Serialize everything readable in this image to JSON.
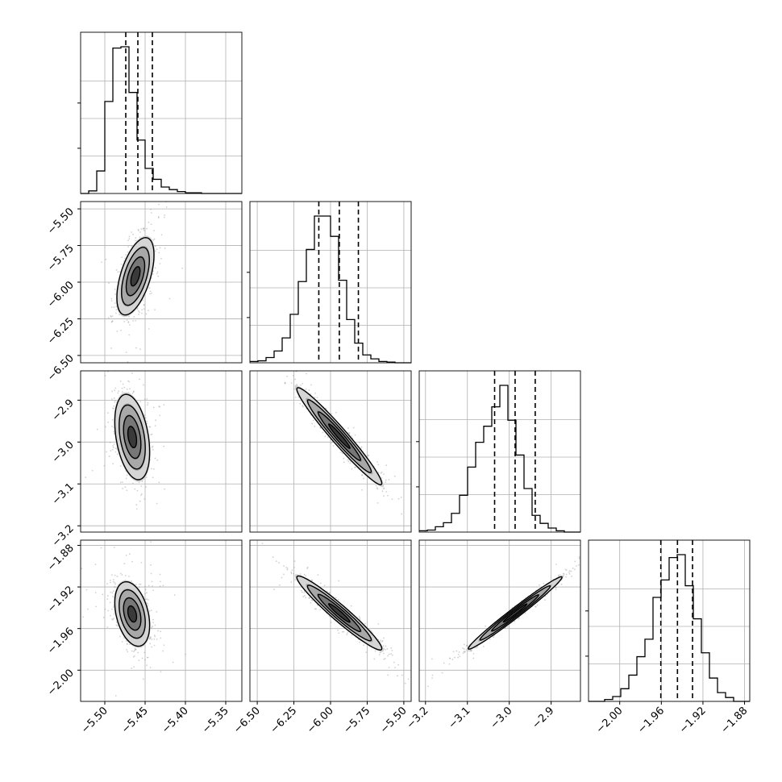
{
  "chart_data": {
    "type": "corner",
    "parameters": [
      {
        "ticks": [
          -5.5,
          -5.45,
          -5.4,
          -5.35
        ],
        "tick_labels": [
          "−5.50",
          "−5.45",
          "−5.40",
          "−5.35"
        ],
        "range": [
          -5.53,
          -5.33
        ],
        "quantiles": [
          -5.474,
          -5.459,
          -5.441
        ]
      },
      {
        "ticks": [
          -6.5,
          -6.25,
          -6.0,
          -5.75,
          -5.5
        ],
        "tick_labels": [
          "−6.50",
          "−6.25",
          "−6.00",
          "−5.75",
          "−5.50"
        ],
        "range": [
          -6.55,
          -5.45
        ],
        "quantiles": [
          -6.08,
          -5.94,
          -5.81
        ]
      },
      {
        "ticks": [
          -3.2,
          -3.1,
          -3.0,
          -2.9
        ],
        "tick_labels": [
          "−3.2",
          "−3.1",
          "−3.0",
          "−2.9"
        ],
        "range": [
          -3.215,
          -2.83
        ],
        "quantiles": [
          -3.035,
          -2.986,
          -2.938
        ]
      },
      {
        "ticks": [
          -2.0,
          -1.96,
          -1.92,
          -1.88
        ],
        "tick_labels": [
          "−2.00",
          "−1.96",
          "−1.92",
          "−1.88"
        ],
        "range": [
          -2.03,
          -1.875
        ],
        "quantiles": [
          -1.9605,
          -1.9445,
          -1.93
        ]
      }
    ],
    "histograms": [
      [
        0,
        4,
        35,
        143,
        226,
        228,
        157,
        83,
        39,
        22,
        10,
        6,
        3,
        1,
        1,
        0,
        0,
        0,
        0,
        0
      ],
      [
        2,
        3,
        8,
        18,
        38,
        74,
        124,
        173,
        224,
        224,
        193,
        126,
        66,
        30,
        12,
        6,
        2,
        1,
        0,
        0
      ],
      [
        2,
        3,
        8,
        14,
        28,
        55,
        97,
        134,
        158,
        187,
        219,
        167,
        115,
        65,
        25,
        13,
        6,
        2,
        0,
        0
      ],
      [
        0,
        0,
        2,
        5,
        13,
        27,
        46,
        64,
        107,
        125,
        148,
        151,
        119,
        85,
        50,
        24,
        9,
        4,
        0,
        0
      ]
    ],
    "contours_2d": [
      {
        "i": 1,
        "j": 0,
        "center": [
          -5.462,
          -5.96
        ],
        "sigma": [
          0.0115,
          0.132
        ],
        "rho": 0.55
      },
      {
        "i": 2,
        "j": 0,
        "center": [
          -5.466,
          -2.988
        ],
        "sigma": [
          0.0108,
          0.051
        ],
        "rho": -0.35
      },
      {
        "i": 2,
        "j": 1,
        "center": [
          -5.94,
          -2.986
        ],
        "sigma": [
          0.145,
          0.058
        ],
        "rho": -0.97
      },
      {
        "i": 3,
        "j": 0,
        "center": [
          -5.466,
          -1.946
        ],
        "sigma": [
          0.0108,
          0.0155
        ],
        "rho": -0.35
      },
      {
        "i": 3,
        "j": 1,
        "center": [
          -5.94,
          -1.945
        ],
        "sigma": [
          0.145,
          0.0178
        ],
        "rho": -0.96
      },
      {
        "i": 3,
        "j": 2,
        "center": [
          -2.986,
          -1.945
        ],
        "sigma": [
          0.056,
          0.0174
        ],
        "rho": 0.985
      }
    ],
    "contour_levels_sigma": [
      0.5,
      1.0,
      1.5,
      2.0
    ],
    "grid": true,
    "colors": {
      "line": "#000000",
      "grid": "#b0b0b0",
      "points": "#9a9a9a"
    }
  }
}
